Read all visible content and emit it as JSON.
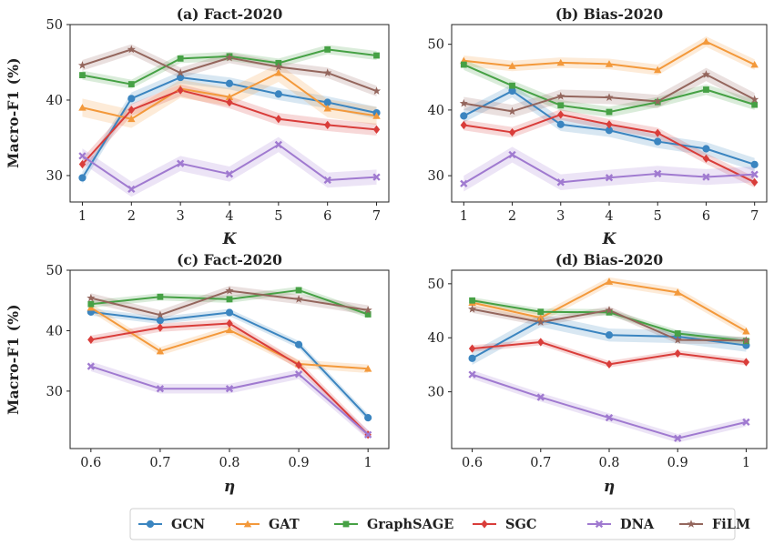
{
  "figure": {
    "y_axis_label": "Macro-F1 (%)",
    "legend": {
      "placement": "bottom-center",
      "entries": [
        {
          "name": "GCN",
          "color": "#3b85c0",
          "marker": "circle"
        },
        {
          "name": "GAT",
          "color": "#f3993b",
          "marker": "triangle"
        },
        {
          "name": "GraphSAGE",
          "color": "#46a145",
          "marker": "square"
        },
        {
          "name": "SGC",
          "color": "#d93d3a",
          "marker": "diamond"
        },
        {
          "name": "DNA",
          "color": "#a07ad0",
          "marker": "x"
        },
        {
          "name": "FiLM",
          "color": "#94665d",
          "marker": "star"
        }
      ]
    }
  },
  "chart_data": [
    {
      "type": "line",
      "title": "(a) Fact-2020",
      "xlabel": "K",
      "ylabel": "Macro-F1 (%)",
      "x": [
        1,
        2,
        3,
        4,
        5,
        6,
        7
      ],
      "xticks": [
        "1",
        "2",
        "3",
        "4",
        "5",
        "6",
        "7"
      ],
      "xlim": [
        0.75,
        7.25
      ],
      "ylim": [
        26.5,
        50
      ],
      "yticks": [
        30,
        40,
        50
      ],
      "series": [
        {
          "name": "GCN",
          "values": [
            29.7,
            40.2,
            43.0,
            42.2,
            40.8,
            39.7,
            38.3
          ],
          "band": 0.8
        },
        {
          "name": "GAT",
          "values": [
            39.0,
            37.5,
            41.5,
            40.4,
            43.6,
            38.9,
            37.9
          ],
          "band": 1.2
        },
        {
          "name": "GraphSAGE",
          "values": [
            43.3,
            42.1,
            45.5,
            45.8,
            44.9,
            46.7,
            45.9
          ],
          "band": 0.6
        },
        {
          "name": "SGC",
          "values": [
            31.5,
            38.7,
            41.3,
            39.7,
            37.5,
            36.7,
            36.1
          ],
          "band": 0.8
        },
        {
          "name": "DNA",
          "values": [
            32.6,
            28.2,
            31.6,
            30.2,
            34.1,
            29.4,
            29.8
          ],
          "band": 1.0
        },
        {
          "name": "FiLM",
          "values": [
            44.6,
            46.7,
            43.6,
            45.6,
            44.4,
            43.6,
            41.2
          ],
          "band": 0.7
        }
      ]
    },
    {
      "type": "line",
      "title": "(b) Bias-2020",
      "xlabel": "K",
      "ylabel": "",
      "x": [
        1,
        2,
        3,
        4,
        5,
        6,
        7
      ],
      "xticks": [
        "1",
        "2",
        "3",
        "4",
        "5",
        "6",
        "7"
      ],
      "xlim": [
        0.75,
        7.25
      ],
      "ylim": [
        26.0,
        53.0
      ],
      "yticks": [
        30,
        40,
        50
      ],
      "series": [
        {
          "name": "GCN",
          "values": [
            39.1,
            42.9,
            37.8,
            36.9,
            35.2,
            34.1,
            31.7
          ],
          "band": 1.0
        },
        {
          "name": "GAT",
          "values": [
            47.5,
            46.7,
            47.2,
            47.0,
            46.1,
            50.4,
            46.9
          ],
          "band": 0.8
        },
        {
          "name": "GraphSAGE",
          "values": [
            46.9,
            43.7,
            40.7,
            39.7,
            41.2,
            43.1,
            40.8
          ],
          "band": 0.8
        },
        {
          "name": "SGC",
          "values": [
            37.7,
            36.6,
            39.3,
            37.8,
            36.5,
            32.6,
            29.0
          ],
          "band": 0.8
        },
        {
          "name": "DNA",
          "values": [
            28.8,
            33.2,
            29.0,
            29.7,
            30.3,
            29.8,
            30.2
          ],
          "band": 1.2
        },
        {
          "name": "FiLM",
          "values": [
            41.0,
            39.8,
            42.1,
            41.9,
            41.3,
            45.4,
            41.6
          ],
          "band": 1.0
        }
      ]
    },
    {
      "type": "line",
      "title": "(c) Fact-2020",
      "xlabel": "η",
      "ylabel": "Macro-F1 (%)",
      "x": [
        0.6,
        0.7,
        0.8,
        0.9,
        1.0
      ],
      "xticks": [
        "0.6",
        "0.7",
        "0.8",
        "0.9",
        "1"
      ],
      "xlim": [
        0.57,
        1.03
      ],
      "ylim": [
        20.5,
        50
      ],
      "yticks": [
        30,
        40,
        50
      ],
      "series": [
        {
          "name": "GCN",
          "values": [
            43.1,
            41.7,
            43.0,
            37.7,
            25.6
          ],
          "band": 0.6
        },
        {
          "name": "GAT",
          "values": [
            43.8,
            36.6,
            40.1,
            34.5,
            33.7
          ],
          "band": 0.7
        },
        {
          "name": "GraphSAGE",
          "values": [
            44.4,
            45.6,
            45.2,
            46.7,
            42.7
          ],
          "band": 0.6
        },
        {
          "name": "SGC",
          "values": [
            38.5,
            40.5,
            41.2,
            34.3,
            22.8
          ],
          "band": 0.7
        },
        {
          "name": "DNA",
          "values": [
            34.1,
            30.4,
            30.4,
            32.8,
            22.8
          ],
          "band": 0.8
        },
        {
          "name": "FiLM",
          "values": [
            45.4,
            42.6,
            46.6,
            45.2,
            43.4
          ],
          "band": 0.8
        }
      ]
    },
    {
      "type": "line",
      "title": "(d) Bias-2020",
      "xlabel": "η",
      "ylabel": "",
      "x": [
        0.6,
        0.7,
        0.8,
        0.9,
        1.0
      ],
      "xticks": [
        "0.6",
        "0.7",
        "0.8",
        "0.9",
        "1"
      ],
      "xlim": [
        0.57,
        1.03
      ],
      "ylim": [
        19.5,
        52.5
      ],
      "yticks": [
        30,
        40,
        50
      ],
      "series": [
        {
          "name": "GCN",
          "values": [
            36.2,
            43.2,
            40.5,
            40.2,
            38.6
          ],
          "band": 1.2
        },
        {
          "name": "GAT",
          "values": [
            46.5,
            43.7,
            50.4,
            48.4,
            41.2
          ],
          "band": 0.8
        },
        {
          "name": "GraphSAGE",
          "values": [
            46.9,
            44.8,
            44.7,
            40.8,
            39.4
          ],
          "band": 0.6
        },
        {
          "name": "SGC",
          "values": [
            38.0,
            39.2,
            35.1,
            37.1,
            35.5
          ],
          "band": 0.6
        },
        {
          "name": "DNA",
          "values": [
            33.2,
            29.0,
            25.2,
            21.4,
            24.4
          ],
          "band": 0.8
        },
        {
          "name": "FiLM",
          "values": [
            45.3,
            42.9,
            45.1,
            39.6,
            39.5
          ],
          "band": 0.7
        }
      ]
    }
  ]
}
